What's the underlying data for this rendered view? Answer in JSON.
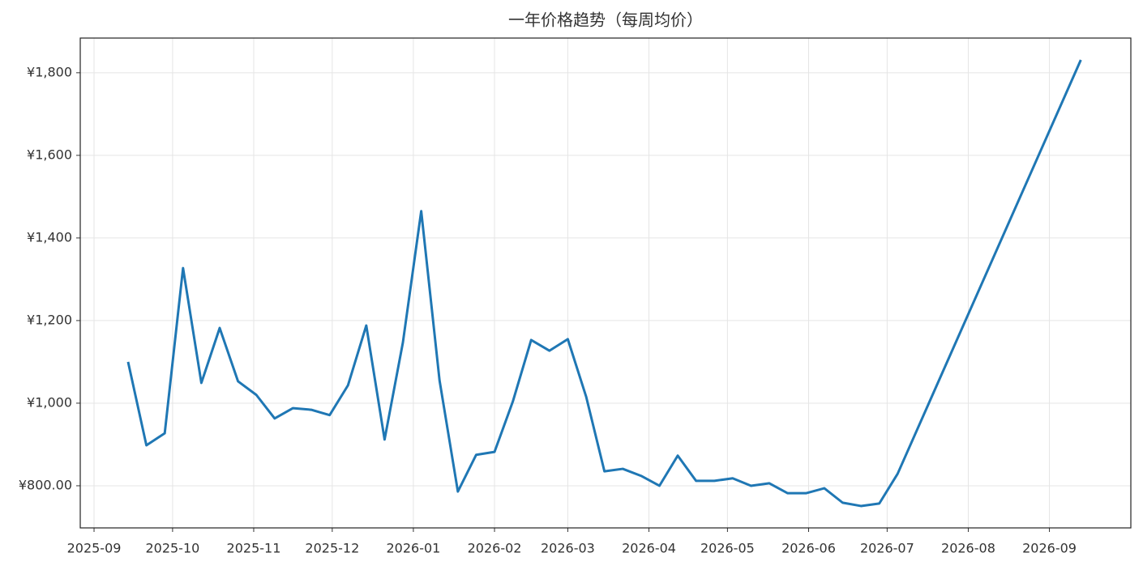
{
  "chart_data": {
    "type": "line",
    "title": "一年价格趋势（每周均价）",
    "x": [
      0,
      1,
      2,
      3,
      4,
      5,
      6,
      7,
      8,
      9,
      10,
      11,
      12,
      13,
      14,
      15,
      16,
      17,
      18,
      19,
      20,
      21,
      22,
      23,
      24,
      25,
      26,
      27,
      28,
      29,
      30,
      31,
      32,
      33,
      34,
      35,
      36,
      37,
      38,
      39,
      40,
      41,
      42,
      52
    ],
    "values": [
      1100,
      898,
      927,
      1327,
      1049,
      1182,
      1053,
      1020,
      963,
      988,
      984,
      971,
      1043,
      1188,
      912,
      1147,
      1465,
      1055,
      786,
      875,
      882,
      1004,
      1153,
      1127,
      1155,
      1016,
      835,
      841,
      824,
      800,
      873,
      812,
      812,
      818,
      800,
      806,
      782,
      782,
      794,
      759,
      751,
      757,
      829,
      1831
    ],
    "color": "#1f77b4",
    "xlim": [
      -2.61,
      54.73
    ],
    "ylim": [
      698,
      1884
    ],
    "xticks": [
      {
        "value": -1.857,
        "label": "2025-09"
      },
      {
        "value": 2.429,
        "label": "2025-10"
      },
      {
        "value": 6.857,
        "label": "2025-11"
      },
      {
        "value": 11.143,
        "label": "2025-12"
      },
      {
        "value": 15.571,
        "label": "2026-01"
      },
      {
        "value": 20,
        "label": "2026-02"
      },
      {
        "value": 24,
        "label": "2026-03"
      },
      {
        "value": 28.429,
        "label": "2026-04"
      },
      {
        "value": 32.714,
        "label": "2026-05"
      },
      {
        "value": 37.143,
        "label": "2026-06"
      },
      {
        "value": 41.429,
        "label": "2026-07"
      },
      {
        "value": 45.857,
        "label": "2026-08"
      },
      {
        "value": 50.286,
        "label": "2026-09"
      }
    ],
    "yticks": [
      {
        "value": 800,
        "label": "¥800.00"
      },
      {
        "value": 1000,
        "label": "¥1,000"
      },
      {
        "value": 1200,
        "label": "¥1,200"
      },
      {
        "value": 1400,
        "label": "¥1,400"
      },
      {
        "value": 1600,
        "label": "¥1,600"
      },
      {
        "value": 1800,
        "label": "¥1,800"
      }
    ],
    "grid": true
  }
}
